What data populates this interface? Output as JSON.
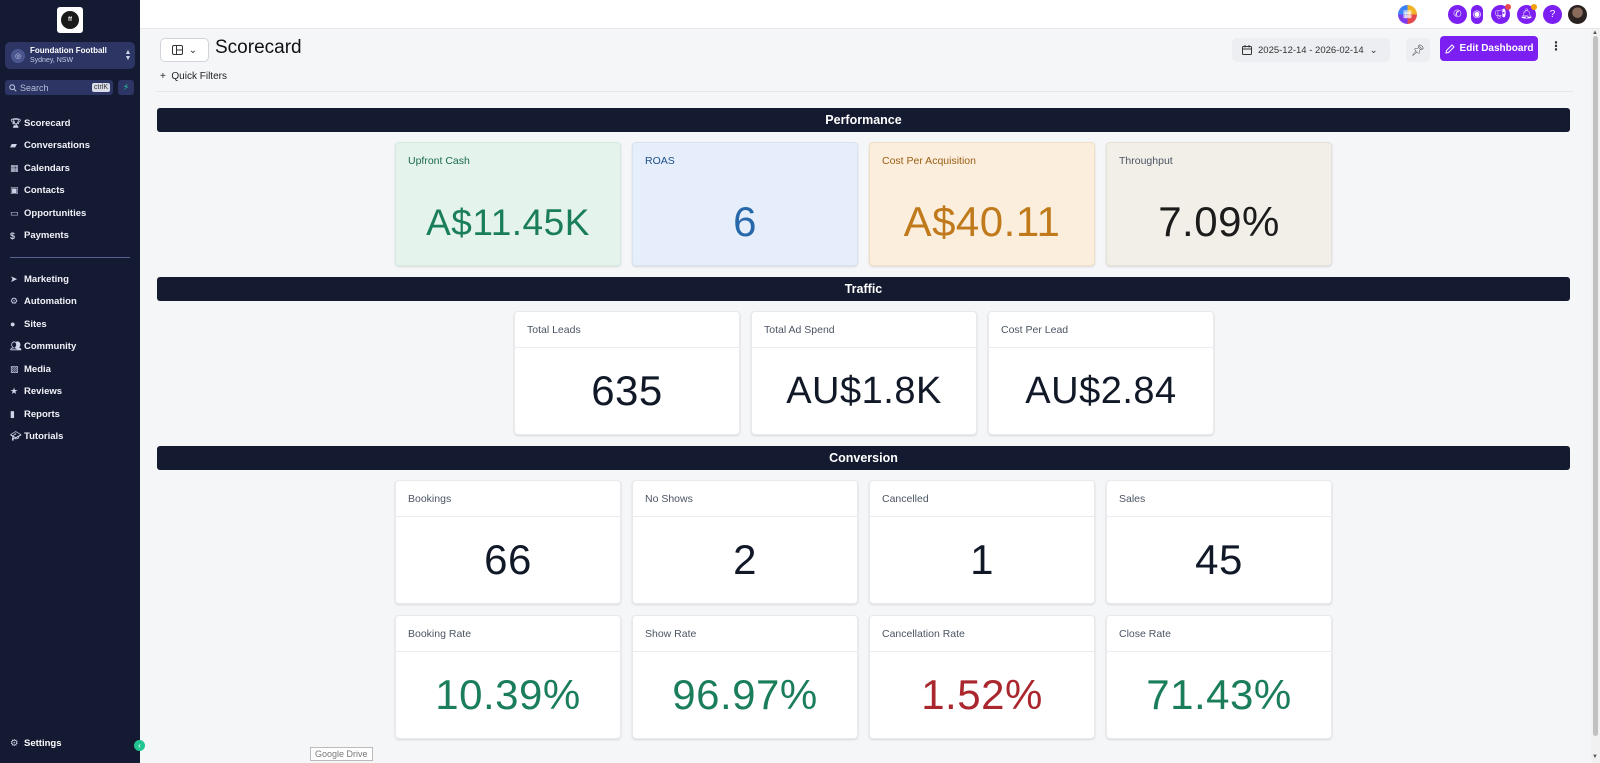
{
  "sidebar": {
    "account": {
      "name": "Foundation Football",
      "location": "Sydney, NSW"
    },
    "search": {
      "placeholder": "Search",
      "shortcut": "ctrlK"
    },
    "nav_primary": [
      {
        "label": "Scorecard",
        "icon": "trophy-icon"
      },
      {
        "label": "Conversations",
        "icon": "chat-icon"
      },
      {
        "label": "Calendars",
        "icon": "calendar-icon"
      },
      {
        "label": "Contacts",
        "icon": "contacts-icon"
      },
      {
        "label": "Opportunities",
        "icon": "opportunities-icon"
      },
      {
        "label": "Payments",
        "icon": "dollar-icon"
      }
    ],
    "nav_secondary": [
      {
        "label": "Marketing",
        "icon": "send-icon"
      },
      {
        "label": "Automation",
        "icon": "robot-icon"
      },
      {
        "label": "Sites",
        "icon": "globe-icon"
      },
      {
        "label": "Community",
        "icon": "users-icon"
      },
      {
        "label": "Media",
        "icon": "image-icon"
      },
      {
        "label": "Reviews",
        "icon": "star-icon"
      },
      {
        "label": "Reports",
        "icon": "bar-chart-icon"
      },
      {
        "label": "Tutorials",
        "icon": "graduation-cap-icon"
      }
    ],
    "settings_label": "Settings"
  },
  "header": {
    "title": "Scorecard",
    "quick_filters": "Quick Filters",
    "date_range": "2025-12-14 - 2026-02-14",
    "edit_dashboard": "Edit Dashboard"
  },
  "colors": {
    "accent": "#7c1ff2",
    "sidebar_bg": "#151a33",
    "section_bg": "#141a30"
  },
  "sections": {
    "performance": {
      "title": "Performance",
      "cards": [
        {
          "title": "Upfront Cash",
          "value": "A$11.45K"
        },
        {
          "title": "ROAS",
          "value": "6"
        },
        {
          "title": "Cost Per Acquisition",
          "value": "A$40.11"
        },
        {
          "title": "Throughput",
          "value": "7.09%"
        }
      ]
    },
    "traffic": {
      "title": "Traffic",
      "cards": [
        {
          "title": "Total Leads",
          "value": "635"
        },
        {
          "title": "Total Ad Spend",
          "value": "AU$1.8K"
        },
        {
          "title": "Cost Per Lead",
          "value": "AU$2.84"
        }
      ]
    },
    "conversion": {
      "title": "Conversion",
      "cards": [
        {
          "title": "Bookings",
          "value": "66"
        },
        {
          "title": "No Shows",
          "value": "2"
        },
        {
          "title": "Cancelled",
          "value": "1"
        },
        {
          "title": "Sales",
          "value": "45"
        },
        {
          "title": "Booking Rate",
          "value": "10.39%"
        },
        {
          "title": "Show Rate",
          "value": "96.97%"
        },
        {
          "title": "Cancellation Rate",
          "value": "1.52%"
        },
        {
          "title": "Close Rate",
          "value": "71.43%"
        }
      ]
    }
  },
  "tooltip": "Google Drive"
}
